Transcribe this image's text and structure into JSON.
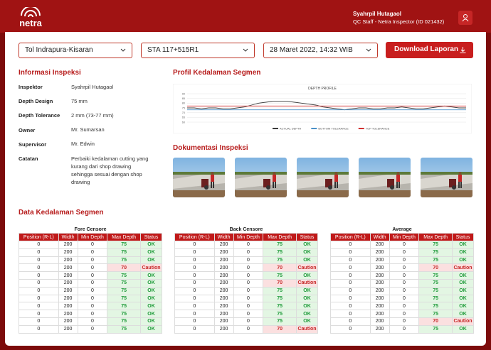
{
  "header": {
    "logo": "netra",
    "user_name": "Syahrpil Hutagaol",
    "user_role": "QC Staff - Netra Inspector (ID 021432)"
  },
  "filters": {
    "project": "Tol Indrapura-Kisaran",
    "station": "STA 117+515R1",
    "date": "28 Maret 2022, 14:32 WIB",
    "download_button": "Download Laporan"
  },
  "info": {
    "title": "Informasi Inspeksi",
    "rows": [
      [
        "Inspektor",
        "Syahrpil Hutagaol"
      ],
      [
        "Depth Design",
        "75 mm"
      ],
      [
        "Depth Tolerance",
        "2 mm (73-77 mm)"
      ],
      [
        "Owner",
        "Mr. Sumarsan"
      ],
      [
        "Supervisor",
        "Mr. Edwin"
      ],
      [
        "Catatan",
        "Perbaiki kedalaman cutting yang kurang dari shop drawing sehingga sesuai dengan shop drawing"
      ]
    ]
  },
  "profile": {
    "title": "Profil Kedalaman Segmen",
    "chart_data": {
      "type": "line",
      "title": "DEPTH PROFILE",
      "x": [
        0,
        1,
        2,
        3,
        4,
        5,
        6,
        7,
        8,
        9,
        10,
        11,
        12,
        13,
        14,
        15,
        16,
        17,
        18,
        19,
        20,
        21,
        22,
        23,
        24,
        25,
        26,
        27,
        28,
        29,
        30,
        31,
        32,
        33,
        34,
        35,
        36,
        37,
        38,
        39
      ],
      "series": [
        {
          "name": "ACTUAL DEPTH",
          "color": "#3a3a3a",
          "values": [
            75,
            75,
            74,
            75,
            75,
            74,
            74,
            75,
            76,
            78,
            80,
            81,
            82,
            82,
            82,
            81,
            80,
            79,
            78,
            76,
            75,
            74,
            73,
            74,
            75,
            75,
            74,
            74,
            75,
            75,
            76,
            75,
            74,
            74,
            75,
            76,
            77,
            76,
            75,
            75
          ]
        },
        {
          "name": "BOTTOM TOLERANCE",
          "color": "#4a90c8",
          "values": [
            73,
            73,
            73,
            73,
            73,
            73,
            73,
            73,
            73,
            73,
            73,
            73,
            73,
            73,
            73,
            73,
            73,
            73,
            73,
            73,
            73,
            73,
            73,
            73,
            73,
            73,
            73,
            73,
            73,
            73,
            73,
            73,
            73,
            73,
            73,
            73,
            73,
            73,
            73,
            73
          ]
        },
        {
          "name": "TOP TOLERANCE",
          "color": "#d23030",
          "values": [
            77,
            77,
            77,
            77,
            77,
            77,
            77,
            77,
            77,
            77,
            77,
            77,
            77,
            77,
            77,
            77,
            77,
            77,
            77,
            77,
            77,
            77,
            77,
            77,
            77,
            77,
            77,
            77,
            77,
            77,
            77,
            77,
            77,
            77,
            77,
            77,
            77,
            77,
            77,
            77
          ]
        }
      ],
      "xlim": [
        0,
        39
      ],
      "ylim": [
        60,
        90
      ],
      "yticks": [
        60,
        65,
        70,
        75,
        80,
        85,
        90
      ],
      "grid": true
    }
  },
  "documentation": {
    "title": "Dokumentasi Inspeksi"
  },
  "depth_data": {
    "title": "Data Kedalaman Segmen",
    "columns": [
      "Position (R-L)",
      "Width",
      "Min Depth",
      "Max Depth",
      "Status"
    ],
    "status_styles": [
      {
        "status": "OK",
        "color": "#1f9a3a",
        "background": "#e3f6e3"
      },
      {
        "status": "Caution",
        "color": "#c62828",
        "background": "#fbe0e0"
      }
    ],
    "tables": [
      {
        "title": "Fore Censore",
        "rows": [
          [
            0,
            200,
            0,
            75,
            "OK"
          ],
          [
            0,
            200,
            0,
            75,
            "OK"
          ],
          [
            0,
            200,
            0,
            75,
            "OK"
          ],
          [
            0,
            200,
            0,
            70,
            "Caution"
          ],
          [
            0,
            200,
            0,
            75,
            "OK"
          ],
          [
            0,
            200,
            0,
            75,
            "OK"
          ],
          [
            0,
            200,
            0,
            75,
            "OK"
          ],
          [
            0,
            200,
            0,
            75,
            "OK"
          ],
          [
            0,
            200,
            0,
            75,
            "OK"
          ],
          [
            0,
            200,
            0,
            75,
            "OK"
          ],
          [
            0,
            200,
            0,
            75,
            "OK"
          ],
          [
            0,
            200,
            0,
            75,
            "OK"
          ]
        ]
      },
      {
        "title": "Back Censore",
        "rows": [
          [
            0,
            200,
            0,
            75,
            "OK"
          ],
          [
            0,
            200,
            0,
            75,
            "OK"
          ],
          [
            0,
            200,
            0,
            75,
            "OK"
          ],
          [
            0,
            200,
            0,
            70,
            "Caution"
          ],
          [
            0,
            200,
            0,
            75,
            "OK"
          ],
          [
            0,
            200,
            0,
            70,
            "Caution"
          ],
          [
            0,
            200,
            0,
            75,
            "OK"
          ],
          [
            0,
            200,
            0,
            75,
            "OK"
          ],
          [
            0,
            200,
            0,
            75,
            "OK"
          ],
          [
            0,
            200,
            0,
            75,
            "OK"
          ],
          [
            0,
            200,
            0,
            75,
            "OK"
          ],
          [
            0,
            200,
            0,
            70,
            "Caution"
          ]
        ]
      },
      {
        "title": "Average",
        "rows": [
          [
            0,
            200,
            0,
            75,
            "OK"
          ],
          [
            0,
            200,
            0,
            75,
            "OK"
          ],
          [
            0,
            200,
            0,
            75,
            "OK"
          ],
          [
            0,
            200,
            0,
            70,
            "Caution"
          ],
          [
            0,
            200,
            0,
            75,
            "OK"
          ],
          [
            0,
            200,
            0,
            75,
            "OK"
          ],
          [
            0,
            200,
            0,
            75,
            "OK"
          ],
          [
            0,
            200,
            0,
            75,
            "OK"
          ],
          [
            0,
            200,
            0,
            75,
            "OK"
          ],
          [
            0,
            200,
            0,
            75,
            "OK"
          ],
          [
            0,
            200,
            0,
            70,
            "Caution"
          ],
          [
            0,
            200,
            0,
            75,
            "OK"
          ]
        ]
      }
    ]
  }
}
